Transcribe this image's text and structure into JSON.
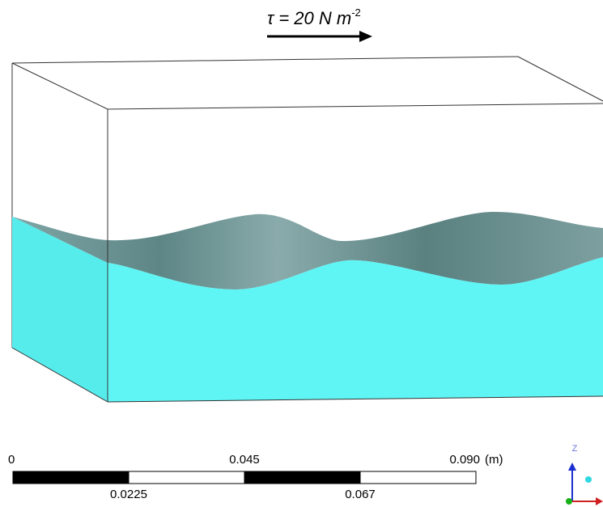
{
  "annotation": {
    "text": "τ = 20 N m",
    "superscript": "-2"
  },
  "scale_bar": {
    "labels_top": [
      "0",
      "0.045",
      "0.090"
    ],
    "unit": "(m)",
    "labels_bottom": [
      "0.0225",
      "0.067"
    ]
  },
  "triad": {
    "z_label": "Z"
  }
}
